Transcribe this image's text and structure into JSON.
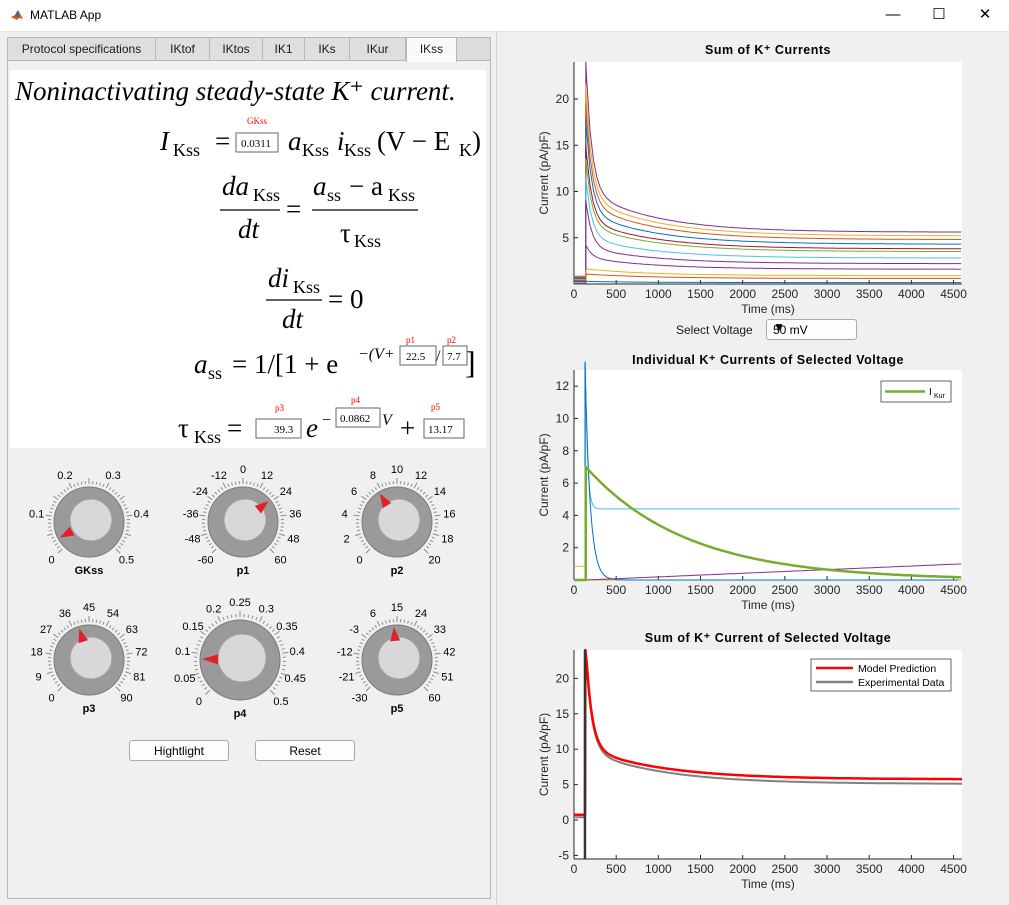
{
  "window": {
    "title": "MATLAB App",
    "minimize": "—",
    "maximize": "☐",
    "close": "✕"
  },
  "tabs": [
    "Protocol specifications",
    "IKtof",
    "IKtos",
    "IK1",
    "IKs",
    "IKur",
    "IKss"
  ],
  "active_tab": "IKss",
  "equations": {
    "heading": "Noninactivating steady-state K⁺ current.",
    "eq1_lhs": "I",
    "eq1_sub": "Kss",
    "eq1_rest_a": "a",
    "eq1_rest_i": "i",
    "eq1_tail": "(V − E",
    "eq1_tail_sub": "K",
    "eq2_num_lhs": "da",
    "eq2_den": "dt",
    "eq2_rhs_num_a": "a",
    "eq2_rhs_num_ss": "ss",
    "eq2_rhs_minus": "− a",
    "eq2_rhs_den": "τ",
    "eq3_num": "di",
    "eq3_rhs": "= 0",
    "eq4_lhs": "a",
    "eq4_lhs_sub": "ss",
    "eq4_mid": "= 1/[1 + e",
    "eq4_exp": "−(V+",
    "eq5_lhs": "τ",
    "eq5_e": "e",
    "eq5_plus": "+",
    "eq_sub_kss": "Kss",
    "eq_equals": "=",
    "param_labels": {
      "GKss": "GKss",
      "p1": "p1",
      "p2": "p2",
      "p3": "p3",
      "p4": "p4",
      "p5": "p5"
    },
    "param_values": {
      "GKss": "0.0311",
      "p1": "22.5",
      "p2": "7.7",
      "p3": "39.3",
      "p4": "0.0862",
      "p5": "13.17"
    }
  },
  "knobs": [
    {
      "id": "GKss",
      "label": "GKss",
      "ticks": [
        "0",
        "0.1",
        "0.2",
        "0.3",
        "0.4",
        "0.5"
      ],
      "min": 0,
      "max": 0.5,
      "value": 0.0311
    },
    {
      "id": "p1",
      "label": "p1",
      "ticks": [
        "-60",
        "-48",
        "-36",
        "-24",
        "-12",
        "0",
        "12",
        "24",
        "36",
        "48",
        "60"
      ],
      "min": -60,
      "max": 60,
      "value": 22.5
    },
    {
      "id": "p2",
      "label": "p2",
      "ticks": [
        "0",
        "2",
        "4",
        "6",
        "8",
        "10",
        "12",
        "14",
        "16",
        "18",
        "20"
      ],
      "min": 0,
      "max": 20,
      "value": 7.7
    },
    {
      "id": "p3",
      "label": "p3",
      "ticks": [
        "0",
        "9",
        "18",
        "27",
        "36",
        "45",
        "54",
        "63",
        "72",
        "81",
        "90"
      ],
      "min": 0,
      "max": 90,
      "value": 39.3
    },
    {
      "id": "p4",
      "label": "p4",
      "ticks": [
        "0",
        "0.05",
        "0.1",
        "0.15",
        "0.2",
        "0.25",
        "0.3",
        "0.35",
        "0.4",
        "0.45",
        "0.5"
      ],
      "min": 0,
      "max": 0.5,
      "value": 0.0862
    },
    {
      "id": "p5",
      "label": "p5",
      "ticks": [
        "-30",
        "-21",
        "-12",
        "-3",
        "6",
        "15",
        "24",
        "33",
        "42",
        "51",
        "60"
      ],
      "min": -30,
      "max": 60,
      "value": 13.17
    }
  ],
  "buttons": {
    "highlight": "Hightlight",
    "reset": "Reset"
  },
  "select_voltage": {
    "label": "Select Voltage",
    "value": "50 mV"
  },
  "chart_data": [
    {
      "type": "line",
      "title": "Sum of K⁺ Currents",
      "xlabel": "Time (ms)",
      "ylabel": "Current (pA/pF)",
      "xlim": [
        0,
        4600
      ],
      "ylim": [
        0,
        24
      ],
      "xticks": [
        0,
        500,
        1000,
        1500,
        2000,
        2500,
        3000,
        3500,
        4000,
        4500
      ],
      "yticks": [
        5,
        10,
        15,
        20
      ],
      "series": [
        {
          "color": "#7e2f8e",
          "step": 24.0,
          "end": 5.6
        },
        {
          "color": "#edb120",
          "step": 21.5,
          "end": 5.2
        },
        {
          "color": "#d95319",
          "step": 19.5,
          "end": 4.8
        },
        {
          "color": "#0072bd",
          "step": 17.8,
          "end": 4.3
        },
        {
          "color": "#a2142f",
          "step": 15.0,
          "end": 3.8
        },
        {
          "color": "#77ac30",
          "step": 13.5,
          "end": 3.5
        },
        {
          "color": "#4dbeee",
          "step": 11.5,
          "end": 2.8
        },
        {
          "color": "#7e2f8e",
          "step": 9.0,
          "end": 2.2
        },
        {
          "color": "#7e2f8e",
          "step": 4.2,
          "end": 1.6
        },
        {
          "color": "#edb120",
          "step": 1.4,
          "end": 0.9
        },
        {
          "color": "#d95319",
          "step": 0.8,
          "end": 0.6
        },
        {
          "color": "#0072bd",
          "step": 0.3,
          "end": 0.15
        }
      ]
    },
    {
      "type": "line",
      "title": "Individual K⁺ Currents of Selected Voltage",
      "xlabel": "Time (ms)",
      "ylabel": "Current (pA/pF)",
      "xlim": [
        0,
        4600
      ],
      "ylim": [
        0,
        13
      ],
      "xticks": [
        0,
        500,
        1000,
        1500,
        2000,
        2500,
        3000,
        3500,
        4000,
        4500
      ],
      "yticks": [
        2,
        4,
        6,
        8,
        10,
        12
      ],
      "legend": {
        "position": "top-right",
        "entries": [
          {
            "name": "I",
            "sub": "Kur",
            "color": "#77ac30"
          }
        ]
      },
      "series": [
        {
          "name": "IKur",
          "color": "#77ac30",
          "peak": 7.0,
          "tau": 1200
        },
        {
          "color": "#4dbeee",
          "peak": 13.5,
          "plateau": 4.4
        },
        {
          "color": "#7e2f8e",
          "end": 1.0
        },
        {
          "color": "#edb120",
          "level": 0.85
        },
        {
          "color": "#0072bd",
          "peak": 13.5,
          "tau": 60
        }
      ]
    },
    {
      "type": "line",
      "title": "Sum of K⁺ Current of Selected Voltage",
      "xlabel": "Time (ms)",
      "ylabel": "Current (pA/pF)",
      "xlim": [
        0,
        4600
      ],
      "ylim": [
        -5.5,
        24
      ],
      "xticks": [
        0,
        500,
        1000,
        1500,
        2000,
        2500,
        3000,
        3500,
        4000,
        4500
      ],
      "yticks": [
        -5,
        0,
        5,
        10,
        15,
        20
      ],
      "legend": {
        "position": "top-right",
        "entries": [
          {
            "name": "Model Prediction",
            "color": "#ff0000"
          },
          {
            "name": "Experimental Data",
            "color": "#808080"
          }
        ]
      },
      "series": [
        {
          "name": "Model Prediction",
          "color": "#ff0000",
          "peak": 24,
          "end": 5.6
        },
        {
          "name": "Experimental Data",
          "color": "#808080",
          "peak": 24,
          "end": 5.3
        }
      ]
    }
  ]
}
